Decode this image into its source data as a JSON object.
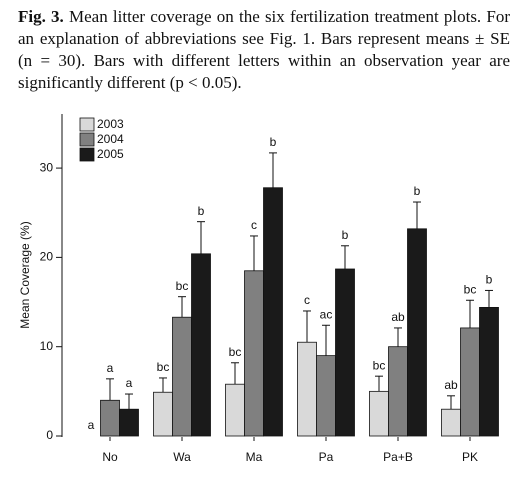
{
  "caption_label": "Fig. 3.",
  "caption": "Mean litter coverage on the six fertilization treatment plots. For an explanation of abbreviations see Fig. 1. Bars represent means ± SE (n = 30). Bars with different letters within an observation year are significantly different (p < 0.05).",
  "chart_data": {
    "type": "bar",
    "y_label": "Mean Coverage (%)",
    "categories": [
      "No",
      "Wa",
      "Ma",
      "Pa",
      "Pa+B",
      "PK"
    ],
    "series": [
      {
        "name": "2003",
        "color": "#d9d9d9",
        "values": [
          0,
          4.9,
          5.8,
          10.5,
          5.0,
          3.0
        ],
        "errors": [
          0,
          1.6,
          2.4,
          3.5,
          1.7,
          1.5
        ],
        "letters": [
          "a",
          "bc",
          "bc",
          "c",
          "bc",
          "ab"
        ]
      },
      {
        "name": "2004",
        "color": "#808080",
        "values": [
          4.0,
          13.3,
          18.5,
          9.0,
          10.0,
          12.1
        ],
        "errors": [
          2.4,
          2.3,
          3.9,
          3.4,
          2.1,
          3.1
        ],
        "letters": [
          "a",
          "bc",
          "c",
          "ac",
          "ab",
          "bc"
        ]
      },
      {
        "name": "2005",
        "color": "#1a1a1a",
        "values": [
          3.0,
          20.4,
          27.8,
          18.7,
          23.2,
          14.4
        ],
        "errors": [
          1.7,
          3.6,
          3.9,
          2.6,
          3.0,
          1.9
        ],
        "letters": [
          "a",
          "b",
          "b",
          "b",
          "b",
          "b"
        ]
      }
    ],
    "ylim": [
      0,
      36
    ],
    "yticks": [
      0,
      10,
      20,
      30
    ],
    "legend": "top-left",
    "grid": false
  }
}
